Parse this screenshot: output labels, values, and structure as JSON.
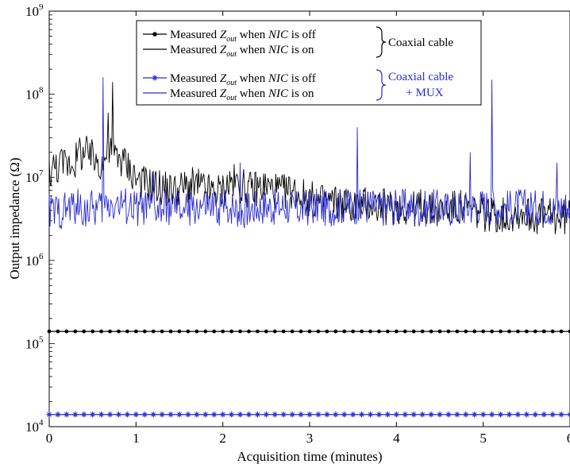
{
  "chart_data": {
    "type": "line",
    "xlabel": "Acquisition time (minutes)",
    "ylabel": "Output impedance (Ω)",
    "yscale": "log",
    "xlim": [
      0,
      6
    ],
    "ylim": [
      10000,
      1000000000
    ],
    "x_ticks": [
      "0",
      "1",
      "2",
      "3",
      "4",
      "5",
      "6"
    ],
    "y_ticks": [
      {
        "base": "10",
        "exp": "4"
      },
      {
        "base": "10",
        "exp": "5"
      },
      {
        "base": "10",
        "exp": "6"
      },
      {
        "base": "10",
        "exp": "7"
      },
      {
        "base": "10",
        "exp": "8"
      },
      {
        "base": "10",
        "exp": "9"
      }
    ],
    "legend": {
      "placement": "top-center",
      "entries": [
        {
          "prefix": "Measured ",
          "sym": "Z",
          "sub": "out",
          "mid": " when ",
          "nic": "NIC",
          "suffix": " is off",
          "color": "#000000",
          "marker": "dot"
        },
        {
          "prefix": "Measured ",
          "sym": "Z",
          "sub": "out",
          "mid": " when ",
          "nic": "NIC",
          "suffix": " is on",
          "color": "#000000",
          "marker": "none"
        },
        {
          "prefix": "Measured ",
          "sym": "Z",
          "sub": "out",
          "mid": " when ",
          "nic": "NIC",
          "suffix": " is off",
          "color": "#2a2ad0",
          "marker": "star"
        },
        {
          "prefix": "Measured ",
          "sym": "Z",
          "sub": "out",
          "mid": " when ",
          "nic": "NIC",
          "suffix": " is on",
          "color": "#2a2ad0",
          "marker": "none"
        }
      ],
      "groups": [
        {
          "label": "Coaxial cable",
          "color": "#000000"
        },
        {
          "label": "Coaxial cable",
          "label2": "+ MUX",
          "color": "#2a2ad0"
        }
      ]
    },
    "series": [
      {
        "key": "coax_off",
        "color": "#000000",
        "marker": "dot",
        "level": 140000,
        "x_start": 0,
        "x_end": 6,
        "step": 0.1
      },
      {
        "key": "mux_off",
        "color": "#2a2ad0",
        "marker": "star",
        "level": 14000,
        "x_start": 0,
        "x_end": 6,
        "step": 0.1
      },
      {
        "key": "coax_on",
        "color": "#000000",
        "marker": "none",
        "x_start": 0,
        "x_end": 6,
        "step": 0.1,
        "values": [
          12000000,
          14000000,
          15000000,
          16000000,
          20000000,
          17000000,
          15000000,
          20000000,
          18000000,
          14000000,
          10000000,
          8500000,
          8000000,
          7500000,
          7000000,
          7200000,
          7800000,
          8000000,
          7000000,
          6500000,
          7000000,
          9000000,
          8000000,
          7000000,
          7500000,
          7800000,
          7000000,
          6500000,
          7000000,
          6000000,
          5500000,
          5000000,
          5200000,
          5000000,
          4800000,
          4500000,
          4700000,
          4800000,
          4500000,
          4300000,
          4500000,
          4300000,
          4200000,
          4500000,
          4000000,
          4000000,
          4200000,
          4300000,
          4100000,
          3800000,
          3700000,
          3600000,
          3500000,
          3500000,
          3800000,
          3600000,
          3400000,
          3500000,
          3300000,
          3200000,
          3500000
        ],
        "spikes": [
          [
            0.73,
            140000000
          ],
          [
            0.68,
            60000000
          ],
          [
            0.35,
            30000000
          ]
        ]
      },
      {
        "key": "mux_on",
        "color": "#2a2ad0",
        "marker": "none",
        "x_start": 0,
        "x_end": 6,
        "step": 0.1,
        "values": [
          4000000,
          3800000,
          4200000,
          4500000,
          4000000,
          4200000,
          4300000,
          5000000,
          4800000,
          4500000,
          4200000,
          4300000,
          4000000,
          4100000,
          4400000,
          4200000,
          4000000,
          4500000,
          4300000,
          4200000,
          4400000,
          4500000,
          4000000,
          4200000,
          4400000,
          4600000,
          4300000,
          4500000,
          4200000,
          4100000,
          4300000,
          4500000,
          4200000,
          4400000,
          4600000,
          4500000,
          4300000,
          4600000,
          4200000,
          4300000,
          4500000,
          4400000,
          4300000,
          4100000,
          4400000,
          4300000,
          4200000,
          4400000,
          4300000,
          4500000,
          4600000,
          4500000,
          4400000,
          4300000,
          4500000,
          4400000,
          4300000,
          4600000,
          4200000,
          4400000,
          4500000
        ],
        "spikes": [
          [
            0.62,
            160000000
          ],
          [
            3.55,
            40000000
          ],
          [
            5.1,
            150000000
          ],
          [
            2.2,
            15000000
          ],
          [
            4.85,
            20000000
          ],
          [
            5.85,
            15000000
          ],
          [
            1.2,
            12000000
          ]
        ]
      }
    ]
  }
}
